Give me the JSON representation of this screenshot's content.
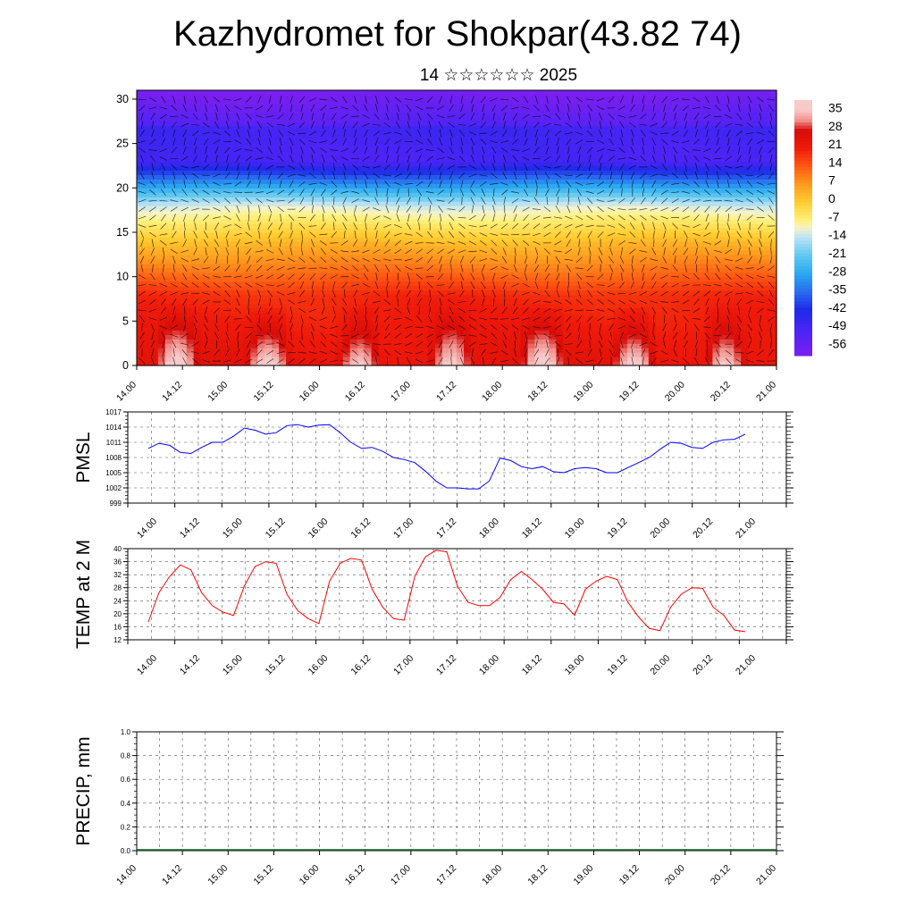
{
  "header": {
    "title": "Kazhydromet for Shokpar(43.82 74)",
    "subtitle": "14 ☆☆☆☆☆☆ 2025"
  },
  "time_labels": [
    "14.00",
    "14.12",
    "15.00",
    "15.12",
    "16.00",
    "16.12",
    "17.00",
    "17.12",
    "18.00",
    "18.12",
    "19.00",
    "19.12",
    "20.00",
    "20.12",
    "21.00"
  ],
  "chart_data": [
    {
      "type": "heatmap",
      "title": "",
      "subtitle": "",
      "y": {
        "range": [
          0,
          31
        ],
        "ticks": [
          0,
          5,
          10,
          15,
          20,
          25,
          30
        ]
      },
      "x_ticks": [
        "14.00",
        "14.12",
        "15.00",
        "15.12",
        "16.00",
        "16.12",
        "17.00",
        "17.12",
        "18.00",
        "18.12",
        "19.00",
        "19.12",
        "20.00",
        "20.12",
        "21.00"
      ],
      "colorbar": {
        "labels": [
          "35",
          "28",
          "21",
          "14",
          "7",
          "0",
          "-7",
          "-14",
          "-21",
          "-28",
          "-35",
          "-42",
          "-49",
          "-56"
        ],
        "range": [
          -60,
          40
        ]
      },
      "field_description": "temperature by level with overlaid wind vectors",
      "color_stops": [
        {
          "v": -60,
          "c": "#7a1ff0"
        },
        {
          "v": -50,
          "c": "#4a24f6"
        },
        {
          "v": -42,
          "c": "#1d2be6"
        },
        {
          "v": -35,
          "c": "#2a6cf0"
        },
        {
          "v": -28,
          "c": "#2aa8f0"
        },
        {
          "v": -21,
          "c": "#5ec8f0"
        },
        {
          "v": -14,
          "c": "#b8e2f6"
        },
        {
          "v": -10,
          "c": "#f6f3c8"
        },
        {
          "v": -7,
          "c": "#fff07a"
        },
        {
          "v": 0,
          "c": "#ffcc30"
        },
        {
          "v": 7,
          "c": "#ff9a1e"
        },
        {
          "v": 14,
          "c": "#ff5a12"
        },
        {
          "v": 21,
          "c": "#f01a0a"
        },
        {
          "v": 28,
          "c": "#d60c08"
        },
        {
          "v": 32,
          "c": "#f2908c"
        },
        {
          "v": 36,
          "c": "#f7c9c8"
        }
      ]
    },
    {
      "type": "line",
      "ylabel": "PMSL",
      "ylim": [
        999,
        1017
      ],
      "yticks": [
        999,
        1002,
        1005,
        1008,
        1011,
        1014,
        1017
      ],
      "x_ticks": [
        "14.00",
        "14.12",
        "15.00",
        "15.12",
        "16.00",
        "16.12",
        "17.00",
        "17.12",
        "18.00",
        "18.12",
        "19.00",
        "19.12",
        "20.00",
        "20.12",
        "21.00"
      ],
      "line_color": "#0000ff",
      "values": [
        1009.8,
        1010.8,
        1010.4,
        1009.0,
        1008.8,
        1010.0,
        1011.0,
        1011.0,
        1012.2,
        1013.8,
        1013.4,
        1012.6,
        1012.9,
        1014.3,
        1014.5,
        1014.0,
        1014.4,
        1014.5,
        1012.9,
        1011.0,
        1009.8,
        1010.0,
        1009.2,
        1008.0,
        1007.6,
        1007.0,
        1005.3,
        1003.3,
        1002.0,
        1002.0,
        1001.8,
        1001.8,
        1003.4,
        1007.9,
        1007.4,
        1006.2,
        1005.8,
        1006.2,
        1005.2,
        1005.0,
        1005.8,
        1006.0,
        1005.8,
        1005.0,
        1005.0,
        1006.0,
        1007.0,
        1008.0,
        1009.6,
        1011.0,
        1010.8,
        1010.0,
        1009.8,
        1011.0,
        1011.5,
        1011.6,
        1012.6
      ]
    },
    {
      "type": "line",
      "ylabel": "TEMP at 2 M",
      "ylim": [
        12,
        40
      ],
      "yticks": [
        12,
        16,
        20,
        24,
        28,
        32,
        36,
        40
      ],
      "x_ticks": [
        "14.00",
        "14.12",
        "15.00",
        "15.12",
        "16.00",
        "16.12",
        "17.00",
        "17.12",
        "18.00",
        "18.12",
        "19.00",
        "19.12",
        "20.00",
        "20.12",
        "21.00"
      ],
      "line_color": "#ff0000",
      "values": [
        17.5,
        26.5,
        31.5,
        35.0,
        33.5,
        26.5,
        22.5,
        20.5,
        19.5,
        28.5,
        34.5,
        36.0,
        35.5,
        26.0,
        21.0,
        18.5,
        17.0,
        30.0,
        35.5,
        37.0,
        36.5,
        27.5,
        22.0,
        18.5,
        18.0,
        31.5,
        37.5,
        39.5,
        39.0,
        28.5,
        23.5,
        22.5,
        22.5,
        25.0,
        30.5,
        33.0,
        30.5,
        27.5,
        23.5,
        23.0,
        19.5,
        27.5,
        30.0,
        31.5,
        30.5,
        23.5,
        19.0,
        15.5,
        14.8,
        22.0,
        26.0,
        28.0,
        27.8,
        22.0,
        19.5,
        15.0,
        14.5
      ]
    },
    {
      "type": "bar",
      "ylabel": "PRECIP, mm",
      "ylim": [
        0,
        1.0
      ],
      "yticks": [
        "0.0",
        "0.2",
        "0.4",
        "0.6",
        "0.8",
        "1.0"
      ],
      "x_ticks": [
        "14.00",
        "14.12",
        "15.00",
        "15.12",
        "16.00",
        "16.12",
        "17.00",
        "17.12",
        "18.00",
        "18.12",
        "19.00",
        "19.12",
        "20.00",
        "20.12",
        "21.00"
      ],
      "values": [
        0,
        0,
        0,
        0,
        0,
        0,
        0,
        0,
        0,
        0,
        0,
        0,
        0,
        0,
        0,
        0,
        0,
        0,
        0,
        0,
        0,
        0,
        0,
        0,
        0,
        0,
        0,
        0,
        0,
        0,
        0,
        0,
        0,
        0,
        0,
        0,
        0,
        0,
        0,
        0,
        0,
        0,
        0,
        0,
        0,
        0,
        0,
        0,
        0,
        0,
        0,
        0,
        0,
        0,
        0,
        0,
        0
      ],
      "baseline_color": "#1a5a2a"
    }
  ]
}
